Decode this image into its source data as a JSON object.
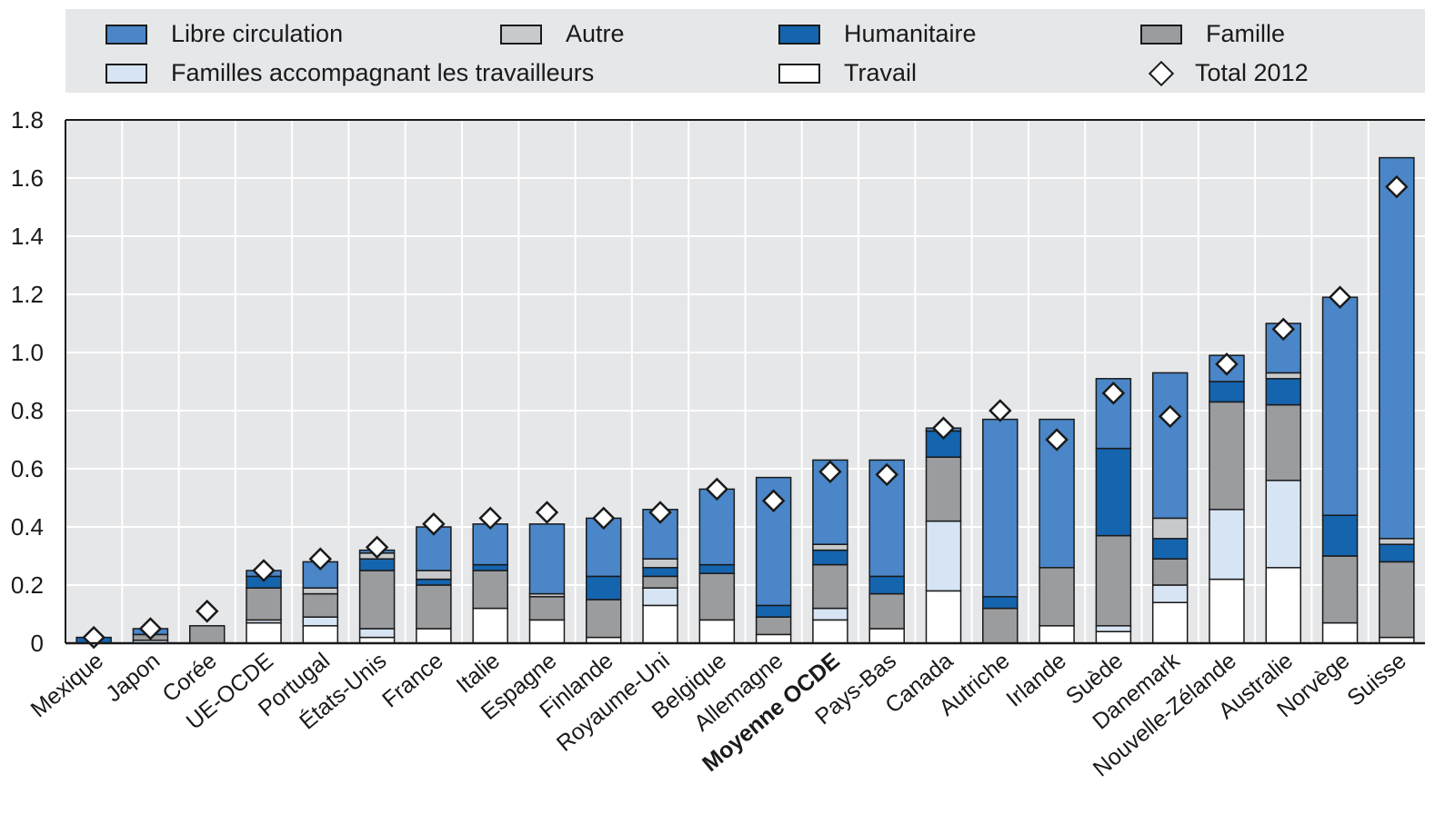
{
  "chart_data": {
    "type": "bar",
    "stacked": true,
    "title": "",
    "xlabel": "",
    "ylabel": "",
    "ylim": [
      0,
      1.8
    ],
    "yticks": [
      0,
      0.2,
      0.4,
      0.6,
      0.8,
      1.0,
      1.2,
      1.4,
      1.6,
      1.8
    ],
    "ytick_labels": [
      "0",
      "0.2",
      "0.4",
      "0.6",
      "0.8",
      "1.0",
      "1.2",
      "1.4",
      "1.6",
      "1.8"
    ],
    "grid": true,
    "legend_position": "top",
    "categories": [
      "Mexique",
      "Japon",
      "Corée",
      "UE-OCDE",
      "Portugal",
      "États-Unis",
      "France",
      "Italie",
      "Espagne",
      "Finlande",
      "Royaume-Uni",
      "Belgique",
      "Allemagne",
      "Moyenne OCDE",
      "Pays-Bas",
      "Canada",
      "Autriche",
      "Irlande",
      "Suède",
      "Danemark",
      "Nouvelle-Zélande",
      "Australie",
      "Norvège",
      "Suisse"
    ],
    "bold_category": "Moyenne OCDE",
    "series": [
      {
        "name": "Travail",
        "color": "#ffffff",
        "values": [
          0,
          0,
          0,
          0.07,
          0.06,
          0.02,
          0.05,
          0.12,
          0.08,
          0.02,
          0.13,
          0.08,
          0.03,
          0.08,
          0.05,
          0.18,
          0,
          0.06,
          0.04,
          0.14,
          0.22,
          0.26,
          0.07,
          0.02
        ]
      },
      {
        "name": "Familles accompagnant les travailleurs",
        "color": "#d6e4f3",
        "values": [
          0,
          0.01,
          0,
          0.01,
          0.03,
          0.03,
          0,
          0,
          0,
          0,
          0.06,
          0,
          0,
          0.04,
          0,
          0.24,
          0,
          0,
          0.02,
          0.06,
          0.24,
          0.3,
          0,
          0
        ]
      },
      {
        "name": "Famille",
        "color": "#9b9c9e",
        "values": [
          0,
          0.02,
          0.06,
          0.11,
          0.08,
          0.2,
          0.15,
          0.13,
          0.08,
          0.13,
          0.04,
          0.16,
          0.06,
          0.15,
          0.12,
          0.22,
          0.12,
          0.2,
          0.31,
          0.09,
          0.37,
          0.26,
          0.23,
          0.26
        ]
      },
      {
        "name": "Humanitaire",
        "color": "#1564ae",
        "values": [
          0.02,
          0,
          0,
          0.04,
          0,
          0.04,
          0.02,
          0.02,
          0,
          0.08,
          0.03,
          0.03,
          0.04,
          0.05,
          0.06,
          0.09,
          0.04,
          0,
          0.3,
          0.07,
          0.07,
          0.09,
          0.14,
          0.06
        ]
      },
      {
        "name": "Autre",
        "color": "#c8c9cb",
        "values": [
          0,
          0,
          0,
          0,
          0.02,
          0.02,
          0.03,
          0,
          0.01,
          0,
          0.03,
          0,
          0,
          0.02,
          0,
          0,
          0,
          0,
          0,
          0.07,
          0,
          0.02,
          0,
          0.02
        ]
      },
      {
        "name": "Libre circulation",
        "color": "#4a86c8",
        "values": [
          0,
          0.02,
          0,
          0.02,
          0.09,
          0.01,
          0.15,
          0.14,
          0.24,
          0.2,
          0.17,
          0.26,
          0.44,
          0.29,
          0.4,
          0.01,
          0.61,
          0.51,
          0.24,
          0.5,
          0.09,
          0.17,
          0.75,
          1.31
        ]
      }
    ],
    "total_2012": {
      "name": "Total 2012",
      "values": [
        0.02,
        0.05,
        0.11,
        0.25,
        0.29,
        0.33,
        0.41,
        0.43,
        0.45,
        0.43,
        0.45,
        0.53,
        0.49,
        0.59,
        0.58,
        0.74,
        0.8,
        0.7,
        0.86,
        0.78,
        0.96,
        1.08,
        1.19,
        1.57
      ]
    }
  },
  "legend": {
    "items": [
      {
        "label": "Libre circulation",
        "color": "#4a86c8",
        "kind": "swatch"
      },
      {
        "label": "Autre",
        "color": "#c8c9cb",
        "kind": "swatch"
      },
      {
        "label": "Humanitaire",
        "color": "#1564ae",
        "kind": "swatch"
      },
      {
        "label": "Famille",
        "color": "#9b9c9e",
        "kind": "swatch"
      },
      {
        "label": "Familles accompagnant les travailleurs",
        "color": "#d6e4f3",
        "kind": "swatch"
      },
      {
        "label": "Travail",
        "color": "#ffffff",
        "kind": "swatch"
      },
      {
        "label": "Total 2012",
        "kind": "diamond"
      }
    ]
  },
  "colors": {
    "plot_background": "#e6e7e9",
    "grid": "#ffffff",
    "axis": "#1a1a1a",
    "text": "#1a1a1a"
  }
}
